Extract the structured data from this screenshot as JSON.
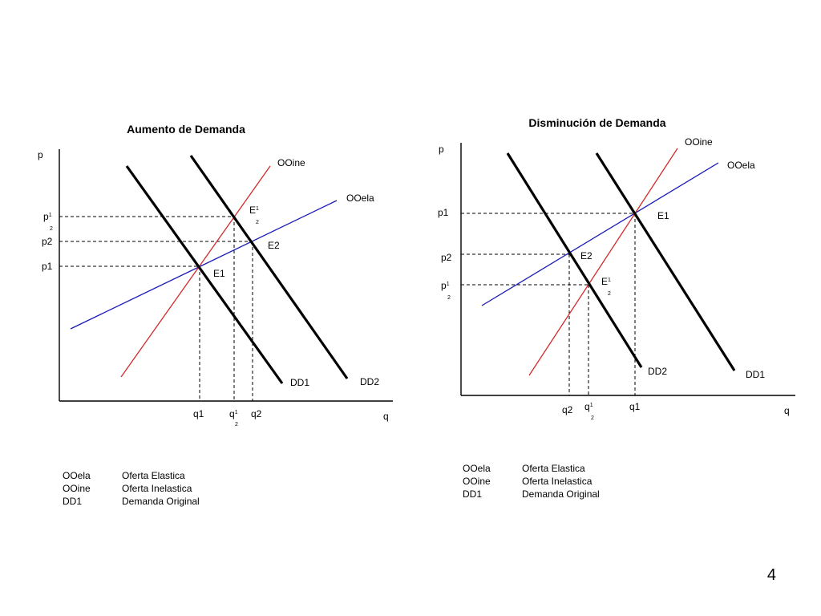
{
  "page_number": "4",
  "colors": {
    "inelastic_supply": "#d22a2a",
    "elastic_supply": "#1a1ab8",
    "demand": "#000000"
  },
  "left": {
    "title": "Aumento de Demanda",
    "axis_y": "p",
    "axis_x": "q",
    "labels": {
      "ooine": "OOine",
      "ooela": "OOela",
      "e1": "E1",
      "e2": "E2",
      "e_half": "E",
      "half": "2",
      "dd1": "DD1",
      "dd2": "DD2",
      "p_half": "p",
      "p2": "p2",
      "p1": "p1",
      "q1": "q1",
      "q_half": "q",
      "q2": "q2"
    },
    "legend": [
      {
        "abbr": "OOela",
        "desc": "Oferta Elastica"
      },
      {
        "abbr": "OOine",
        "desc": "Oferta Inelastica"
      },
      {
        "abbr": "DD1",
        "desc": "Demanda Original"
      }
    ]
  },
  "right": {
    "title": "Disminución de Demanda",
    "axis_y": "p",
    "axis_x": "q",
    "labels": {
      "ooine": "OOine",
      "ooela": "OOela",
      "e1": "E1",
      "e2": "E2",
      "e_half": "E",
      "half": "2",
      "dd1": "DD1",
      "dd2": "DD2",
      "p1": "p1",
      "p2": "p2",
      "p_half": "p",
      "q2": "q2",
      "q_half": "q",
      "q1": "q1"
    },
    "legend": [
      {
        "abbr": "OOela",
        "desc": "Oferta Elastica"
      },
      {
        "abbr": "OOine",
        "desc": "Oferta Inelastica"
      },
      {
        "abbr": "DD1",
        "desc": "Demanda Original"
      }
    ]
  }
}
